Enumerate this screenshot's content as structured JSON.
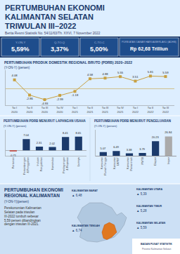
{
  "chart_data": [
    {
      "type": "line",
      "title": "PERTUMBUHAN PRODUK DOMESTIK REGIONAL BRUTO (PDRB) 2020–2022",
      "subtitle": "(Y-ON-Y) (persen)",
      "categories": [
        "Tw I\n2020",
        "Tw II\n2020",
        "Tw III\n2020",
        "Tw IV\n2020",
        "Tw I\n2021",
        "Tw II\n2021",
        "Tw III\n2021",
        "Tw IV\n2021",
        "Tw I\n2022",
        "Tw II\n2022",
        "Tw III\n2022"
      ],
      "values": [
        4.08,
        -2.86,
        -4.93,
        -2.99,
        -1.18,
        4.58,
        4.88,
        5.55,
        3.51,
        5.81,
        5.59
      ],
      "color": "#c8a040",
      "marker": "square",
      "data_labels": true,
      "tick_labels": "x",
      "ylim": [
        -7.5,
        8.5
      ],
      "annotations": [
        "PERTUMBUHAN EKONOMI",
        "KALIMANTAN SELATAN",
        "TRIWULAN III–2022",
        "Berita Resmi Statistik No. 54/11/63/Th. XXVI, 7 November 2022",
        "Y-ON-Y",
        "5,59%",
        "Q-TO-Q",
        "3,37%",
        "C-TO-C",
        "5,00%",
        "PDRB ATAS DASAR HARGA BERLAKU (ADHB)",
        "Rp 62,68 Trilliun",
        "PERTUMBUHAN EKONOMI\nREGIONAL KALIMANTAN",
        "(Y-ON-Y)(persen)",
        "Perekonomian Kalimantan\nSelatan pada triwulan\nIII-2022 tumbuh sebesar\n5,59 persen dibandingkan\ndengan triwulan III-2021.",
        "KALIMANTAN BARAT",
        "▲ 6,48",
        "KALIMANTAN TENGAH",
        "▲ 6,74",
        "KALIMANTAN UTARA",
        "▲ 5,39",
        "KALIMANTAN TIMUR",
        "▲ 5,28",
        "KALIMANTAN SELATAN",
        "▲ 5,59",
        "BADAN PUSAT STATISTIK",
        "Provinsi Kalimantan Selatan"
      ]
    },
    {
      "type": "bar",
      "title": "PERTUMBUHAN PDRB MENURUT LAPANGAN USAHA",
      "subtitle": "(Y-ON-Y) (persen)",
      "categories": [
        "Pertanian",
        "Pertambangan\n& Penggalian",
        "Industri\nPengolahan",
        "Konstruksi",
        "Perdagangan\n& Reparasi",
        "Lainnya"
      ],
      "values": [
        -0.71,
        7.04,
        2.31,
        2.02,
        8.41,
        8.65
      ],
      "colors": [
        "#c0392b",
        "#1b3a6b",
        "#1b3a6b",
        "#1b3a6b",
        "#1b3a6b",
        "#1b3a6b"
      ],
      "data_labels": true,
      "tick_labels": "x",
      "ylim": [
        -3.5,
        13
      ]
    },
    {
      "type": "bar",
      "title": "PERTUMBUHAN PDRB MENURUT PENGELUARAN",
      "subtitle": "(Y-ON-Y) (persen)",
      "categories": [
        "Konsumsi\nRumah Tangga",
        "Konsumsi\nLKPBT",
        "Konsumsi\nPemerintah",
        "PMTB",
        "Ekspor",
        "Impor"
      ],
      "values": [
        5.07,
        6.49,
        3.38,
        3.79,
        20.23,
        26.84
      ],
      "colors": [
        "#1b3a6b",
        "#1b3a6b",
        "#1b3a6b",
        "#1b3a6b",
        "#1b3a6b",
        "#aaaaaa"
      ],
      "data_labels": true,
      "tick_labels": "x",
      "ylim": [
        0,
        36
      ]
    }
  ]
}
